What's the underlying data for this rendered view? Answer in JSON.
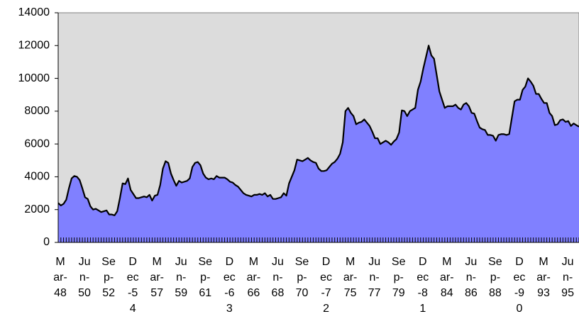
{
  "chart_data": {
    "type": "area",
    "color": "#8080ff",
    "categories": [
      "Mar-48",
      null,
      null,
      null,
      null,
      null,
      null,
      null,
      null,
      "Jun-50",
      null,
      null,
      null,
      null,
      null,
      null,
      null,
      null,
      "Sep-52",
      null,
      null,
      null,
      null,
      null,
      null,
      null,
      null,
      "Dec-54",
      null,
      null,
      null,
      null,
      null,
      null,
      null,
      null,
      "Mar-57",
      null,
      null,
      null,
      null,
      null,
      null,
      null,
      null,
      "Jun-59",
      null,
      null,
      null,
      null,
      null,
      null,
      null,
      null,
      "Sep-61",
      null,
      null,
      null,
      null,
      null,
      null,
      null,
      null,
      "Dec-63",
      null,
      null,
      null,
      null,
      null,
      null,
      null,
      null,
      "Mar-66",
      null,
      null,
      null,
      null,
      null,
      null,
      null,
      null,
      "Jun-68",
      null,
      null,
      null,
      null,
      null,
      null,
      null,
      null,
      "Sep-70",
      null,
      null,
      null,
      null,
      null,
      null,
      null,
      null,
      "Dec-72",
      null,
      null,
      null,
      null,
      null,
      null,
      null,
      null,
      "Mar-75",
      null,
      null,
      null,
      null,
      null,
      null,
      null,
      null,
      "Jun-77",
      null,
      null,
      null,
      null,
      null,
      null,
      null,
      null,
      "Sep-79",
      null,
      null,
      null,
      null,
      null,
      null,
      null,
      null,
      "Dec-81",
      null,
      null,
      null,
      null,
      null,
      null,
      null,
      null,
      "Mar-84",
      null,
      null,
      null,
      null,
      null,
      null,
      null,
      null,
      "Jun-86",
      null,
      null,
      null,
      null,
      null,
      null,
      null,
      null,
      "Sep-88",
      null,
      null,
      null,
      null,
      null,
      null,
      null,
      null,
      "Dec-90",
      null,
      null,
      null,
      null,
      null,
      null,
      null,
      null,
      "Mar-93",
      null,
      null,
      null,
      null,
      null,
      null,
      null,
      null,
      "Jun-95",
      null,
      null,
      null,
      null,
      null
    ],
    "values": [
      2400,
      2250,
      2350,
      2600,
      3300,
      3900,
      4050,
      4000,
      3800,
      3300,
      2750,
      2650,
      2200,
      2000,
      2050,
      1950,
      1850,
      1900,
      1950,
      1700,
      1700,
      1650,
      1900,
      2700,
      3600,
      3550,
      3900,
      3200,
      2950,
      2700,
      2700,
      2750,
      2800,
      2750,
      2900,
      2550,
      2850,
      2900,
      3500,
      4500,
      4950,
      4850,
      4200,
      3800,
      3450,
      3750,
      3650,
      3700,
      3750,
      3900,
      4600,
      4850,
      4900,
      4700,
      4200,
      3950,
      3850,
      3900,
      3850,
      4050,
      3950,
      3950,
      3950,
      3850,
      3700,
      3650,
      3500,
      3400,
      3200,
      3000,
      2900,
      2850,
      2800,
      2900,
      2900,
      2950,
      2900,
      3000,
      2800,
      2900,
      2650,
      2650,
      2700,
      2750,
      3000,
      2850,
      3600,
      4000,
      4400,
      5050,
      5000,
      4950,
      5050,
      5150,
      5000,
      4900,
      4850,
      4500,
      4350,
      4350,
      4400,
      4600,
      4800,
      4900,
      5100,
      5400,
      6100,
      8000,
      8200,
      7900,
      7700,
      7200,
      7300,
      7350,
      7500,
      7300,
      7100,
      6750,
      6350,
      6350,
      6000,
      6100,
      6200,
      6100,
      5950,
      6150,
      6300,
      6700,
      8050,
      8000,
      7700,
      8000,
      8100,
      8200,
      9300,
      9800,
      10600,
      11300,
      12000,
      11400,
      11200,
      10200,
      9200,
      8700,
      8200,
      8300,
      8300,
      8300,
      8400,
      8200,
      8100,
      8400,
      8500,
      8300,
      7900,
      7850,
      7400,
      7000,
      6900,
      6850,
      6550,
      6550,
      6500,
      6200,
      6550,
      6600,
      6600,
      6550,
      6600,
      7600,
      8600,
      8700,
      8700,
      9300,
      9500,
      10000,
      9800,
      9550,
      9050,
      9050,
      8750,
      8500,
      8500,
      7900,
      7700,
      7150,
      7200,
      7450,
      7500,
      7350,
      7400,
      7100,
      7250,
      7150,
      7050
    ],
    "ylim": [
      0,
      14000
    ],
    "yticks": [
      0,
      2000,
      4000,
      6000,
      8000,
      10000,
      12000,
      14000
    ]
  }
}
